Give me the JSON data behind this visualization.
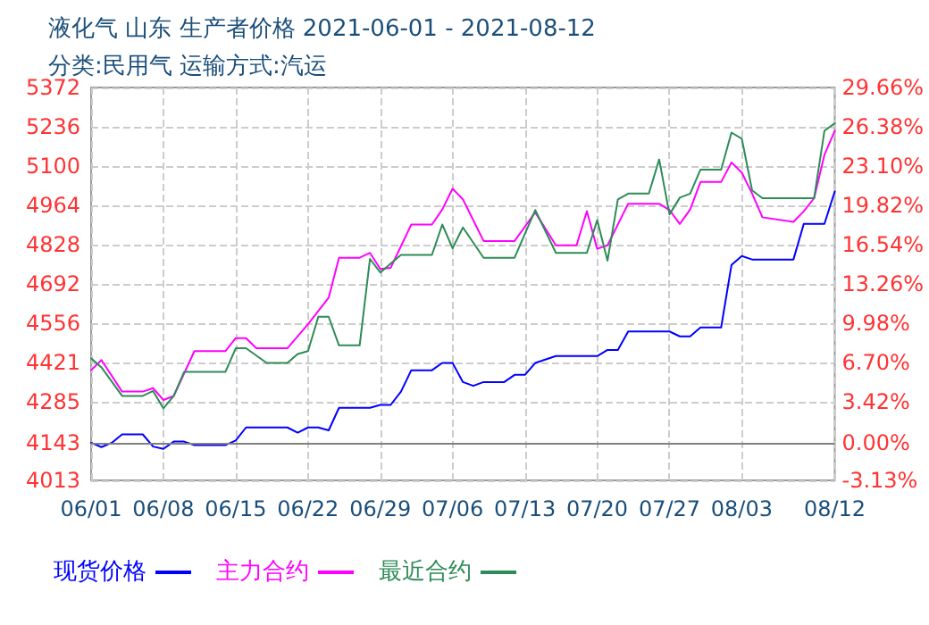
{
  "chart_data": {
    "type": "line",
    "title": "液化气 山东 生产者价格 2021-06-01 - 2021-08-12",
    "subtitle": "分类:民用气 运输方式:汽运",
    "xlim": [
      "--06-01",
      "--08-12"
    ],
    "xticks": [
      {
        "value": "--06-01",
        "label": "06/01"
      },
      {
        "value": "--06-08",
        "label": "06/08"
      },
      {
        "value": "--06-15",
        "label": "06/15"
      },
      {
        "value": "--06-22",
        "label": "06/22"
      },
      {
        "value": "--06-29",
        "label": "06/29"
      },
      {
        "value": "--07-06",
        "label": "07/06"
      },
      {
        "value": "--07-13",
        "label": "07/13"
      },
      {
        "value": "--07-20",
        "label": "07/20"
      },
      {
        "value": "--07-27",
        "label": "07/27"
      },
      {
        "value": "--08-03",
        "label": "08/03"
      },
      {
        "value": "--08-12",
        "label": "08/12"
      }
    ],
    "ylim": [
      4013,
      5372
    ],
    "yticks": [
      4013,
      4143,
      4285,
      4421,
      4556,
      4692,
      4828,
      4964,
      5100,
      5236,
      5372
    ],
    "y2lim": [
      -3.13,
      29.66
    ],
    "y2ticks": [
      {
        "value": -3.13,
        "label": "-3.13%"
      },
      {
        "value": 0,
        "label": "0.00%"
      },
      {
        "value": 3.42,
        "label": "3.42%"
      },
      {
        "value": 6.7,
        "label": "6.70%"
      },
      {
        "value": 9.98,
        "label": "9.98%"
      },
      {
        "value": 13.26,
        "label": "13.26%"
      },
      {
        "value": 16.54,
        "label": "16.54%"
      },
      {
        "value": 19.82,
        "label": "19.82%"
      },
      {
        "value": 23.1,
        "label": "23.10%"
      },
      {
        "value": 26.38,
        "label": "26.38%"
      },
      {
        "value": 29.66,
        "label": "29.66%"
      }
    ],
    "ref_lines": [
      {
        "axis": "y2",
        "value": 0,
        "color": "#808080"
      }
    ],
    "grid": true,
    "legend": "bottom",
    "marker": "none",
    "line_style": "solid",
    "series": [
      {
        "name": "现货价格",
        "color": "#0000ff",
        "x": [
          "--06-01",
          "--06-02",
          "--06-03",
          "--06-04",
          "--06-06",
          "--06-07",
          "--06-08",
          "--06-09",
          "--06-10",
          "--06-11",
          "--06-14",
          "--06-15",
          "--06-16",
          "--06-20",
          "--06-21",
          "--06-22",
          "--06-23",
          "--06-24",
          "--06-25",
          "--06-28",
          "--06-29",
          "--06-30",
          "--07-01",
          "--07-02",
          "--07-04",
          "--07-05",
          "--07-06",
          "--07-07",
          "--07-08",
          "--07-09",
          "--07-11",
          "--07-12",
          "--07-13",
          "--07-14",
          "--07-16",
          "--07-20",
          "--07-21",
          "--07-22",
          "--07-23",
          "--07-27",
          "--07-28",
          "--07-29",
          "--07-30",
          "--08-01",
          "--08-02",
          "--08-03",
          "--08-04",
          "--08-08",
          "--08-09",
          "--08-11",
          "--08-12"
        ],
        "values": [
          4143,
          4128,
          4143,
          4172,
          4172,
          4130,
          4122,
          4147,
          4147,
          4135,
          4135,
          4151,
          4196,
          4196,
          4178,
          4196,
          4196,
          4186,
          4264,
          4264,
          4274,
          4274,
          4320,
          4394,
          4394,
          4419,
          4419,
          4353,
          4340,
          4353,
          4353,
          4378,
          4378,
          4419,
          4443,
          4443,
          4464,
          4464,
          4528,
          4528,
          4511,
          4511,
          4542,
          4542,
          4758,
          4789,
          4777,
          4777,
          4900,
          4900,
          5012
        ]
      },
      {
        "name": "主力合约",
        "color": "#ff00ff",
        "x": [
          "--06-01",
          "--06-02",
          "--06-04",
          "--06-06",
          "--06-07",
          "--06-08",
          "--06-09",
          "--06-11",
          "--06-14",
          "--06-15",
          "--06-16",
          "--06-17",
          "--06-20",
          "--06-22",
          "--06-24",
          "--06-25",
          "--06-27",
          "--06-28",
          "--06-29",
          "--06-30",
          "--07-02",
          "--07-04",
          "--07-05",
          "--07-06",
          "--07-07",
          "--07-09",
          "--07-12",
          "--07-14",
          "--07-16",
          "--07-18",
          "--07-19",
          "--07-20",
          "--07-21",
          "--07-23",
          "--07-26",
          "--07-27",
          "--07-28",
          "--07-29",
          "--07-30",
          "--08-01",
          "--08-02",
          "--08-03",
          "--08-04",
          "--08-05",
          "--08-08",
          "--08-09",
          "--08-10",
          "--08-11",
          "--08-12"
        ],
        "values": [
          4394,
          4429,
          4320,
          4320,
          4332,
          4291,
          4305,
          4460,
          4460,
          4505,
          4505,
          4470,
          4470,
          4553,
          4645,
          4783,
          4783,
          4800,
          4744,
          4748,
          4898,
          4898,
          4950,
          5022,
          4985,
          4841,
          4841,
          4940,
          4826,
          4826,
          4944,
          4814,
          4826,
          4970,
          4970,
          4948,
          4900,
          4950,
          5045,
          5045,
          5113,
          5078,
          5005,
          4923,
          4907,
          4944,
          4989,
          5139,
          5222
        ]
      },
      {
        "name": "最近合约",
        "color": "#2e8b57",
        "x": [
          "--06-01",
          "--06-02",
          "--06-04",
          "--06-06",
          "--06-07",
          "--06-08",
          "--06-09",
          "--06-10",
          "--06-14",
          "--06-15",
          "--06-16",
          "--06-18",
          "--06-20",
          "--06-21",
          "--06-22",
          "--06-23",
          "--06-24",
          "--06-25",
          "--06-27",
          "--06-28",
          "--06-29",
          "--06-30",
          "--07-01",
          "--07-04",
          "--07-05",
          "--07-06",
          "--07-07",
          "--07-09",
          "--07-12",
          "--07-14",
          "--07-16",
          "--07-19",
          "--07-20",
          "--07-21",
          "--07-22",
          "--07-23",
          "--07-25",
          "--07-26",
          "--07-27",
          "--07-28",
          "--07-29",
          "--07-30",
          "--08-01",
          "--08-02",
          "--08-03",
          "--08-04",
          "--08-05",
          "--08-10",
          "--08-11",
          "--08-12"
        ],
        "values": [
          4435,
          4404,
          4305,
          4305,
          4322,
          4262,
          4305,
          4388,
          4388,
          4470,
          4470,
          4419,
          4419,
          4450,
          4460,
          4579,
          4579,
          4480,
          4480,
          4779,
          4732,
          4763,
          4793,
          4793,
          4898,
          4816,
          4888,
          4783,
          4783,
          4948,
          4800,
          4800,
          4913,
          4773,
          4985,
          5005,
          5005,
          5123,
          4933,
          4991,
          5005,
          5088,
          5088,
          5216,
          5195,
          5016,
          4989,
          4989,
          5222,
          5248
        ]
      }
    ]
  }
}
